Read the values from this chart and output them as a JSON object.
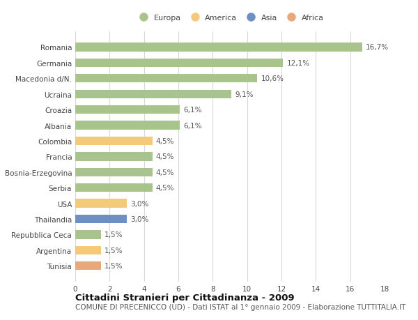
{
  "categories": [
    "Tunisia",
    "Argentina",
    "Repubblica Ceca",
    "Thailandia",
    "USA",
    "Serbia",
    "Bosnia-Erzegovina",
    "Francia",
    "Colombia",
    "Albania",
    "Croazia",
    "Ucraina",
    "Macedonia d/N.",
    "Germania",
    "Romania"
  ],
  "values": [
    1.5,
    1.5,
    1.5,
    3.0,
    3.0,
    4.5,
    4.5,
    4.5,
    4.5,
    6.1,
    6.1,
    9.1,
    10.6,
    12.1,
    16.7
  ],
  "colors": [
    "#e8a87c",
    "#f5c97a",
    "#a8c48a",
    "#6e8fc4",
    "#f5c97a",
    "#a8c48a",
    "#a8c48a",
    "#a8c48a",
    "#f5c97a",
    "#a8c48a",
    "#a8c48a",
    "#a8c48a",
    "#a8c48a",
    "#a8c48a",
    "#a8c48a"
  ],
  "labels": [
    "1,5%",
    "1,5%",
    "1,5%",
    "3,0%",
    "3,0%",
    "4,5%",
    "4,5%",
    "4,5%",
    "4,5%",
    "6,1%",
    "6,1%",
    "9,1%",
    "10,6%",
    "12,1%",
    "16,7%"
  ],
  "legend": [
    {
      "label": "Europa",
      "color": "#a8c48a"
    },
    {
      "label": "America",
      "color": "#f5c97a"
    },
    {
      "label": "Asia",
      "color": "#6e8fc4"
    },
    {
      "label": "Africa",
      "color": "#e8a87c"
    }
  ],
  "xlim": [
    0,
    18
  ],
  "xticks": [
    0,
    2,
    4,
    6,
    8,
    10,
    12,
    14,
    16,
    18
  ],
  "title": "Cittadini Stranieri per Cittadinanza - 2009",
  "subtitle": "COMUNE DI PRECENICCO (UD) - Dati ISTAT al 1° gennaio 2009 - Elaborazione TUTTITALIA.IT",
  "background_color": "#ffffff",
  "grid_color": "#d8d8d8",
  "bar_height": 0.55,
  "title_fontsize": 9.5,
  "subtitle_fontsize": 7.5,
  "label_fontsize": 7.5,
  "tick_fontsize": 7.5
}
